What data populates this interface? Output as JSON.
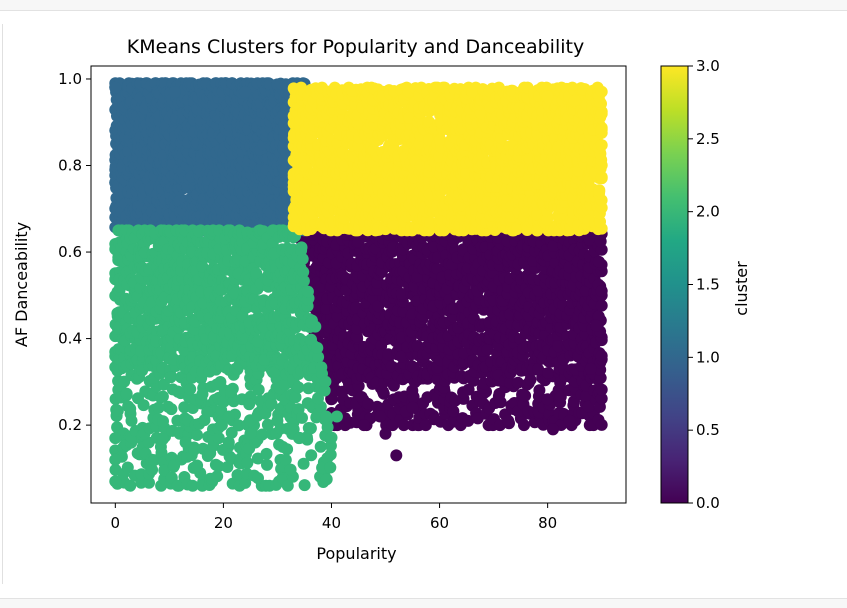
{
  "chart_data": {
    "type": "scatter",
    "title": "KMeans Clusters for Popularity and Danceability",
    "xlabel": "Popularity",
    "ylabel": "AF Danceability",
    "xlim": [
      -4.5,
      94.5
    ],
    "ylim": [
      0.02,
      1.03
    ],
    "xticks": [
      0,
      20,
      40,
      60,
      80
    ],
    "yticks": [
      0.2,
      0.4,
      0.6,
      0.8,
      1.0
    ],
    "xtick_labels": [
      "0",
      "20",
      "40",
      "60",
      "80"
    ],
    "ytick_labels": [
      "0.2",
      "0.4",
      "0.6",
      "0.8",
      "1.0"
    ],
    "grid": false,
    "colorbar": {
      "label": "cluster",
      "range": [
        0.0,
        3.0
      ],
      "ticks": [
        0.0,
        0.5,
        1.0,
        1.5,
        2.0,
        2.5,
        3.0
      ],
      "tick_labels": [
        "0.0",
        "0.5",
        "1.0",
        "1.5",
        "2.0",
        "2.5",
        "3.0"
      ],
      "colormap": "viridis",
      "colors": [
        "#440154",
        "#482475",
        "#414487",
        "#355f8d",
        "#2a788e",
        "#21918c",
        "#22a884",
        "#44bf70",
        "#7ad151",
        "#bddf26",
        "#fde725"
      ]
    },
    "clusters": [
      {
        "cluster": 0,
        "color": "#440154",
        "x_range": [
          34,
          90
        ],
        "y_range": [
          0.2,
          0.65
        ]
      },
      {
        "cluster": 1,
        "color": "#31688e",
        "x_range": [
          0,
          35
        ],
        "y_range": [
          0.65,
          0.99
        ]
      },
      {
        "cluster": 2,
        "color": "#35b779",
        "x_range": [
          0,
          40
        ],
        "y_range": [
          0.06,
          0.65
        ]
      },
      {
        "cluster": 3,
        "color": "#fde725",
        "x_range": [
          33,
          90
        ],
        "y_range": [
          0.65,
          0.98
        ]
      }
    ],
    "outlier_points": [
      {
        "x": 0,
        "y": 0.07,
        "cluster": 2
      },
      {
        "x": 0,
        "y": 0.12,
        "cluster": 2
      },
      {
        "x": 0,
        "y": 0.17,
        "cluster": 2
      },
      {
        "x": 3,
        "y": 0.21,
        "cluster": 2
      },
      {
        "x": 8,
        "y": 0.24,
        "cluster": 2
      },
      {
        "x": 13,
        "y": 0.16,
        "cluster": 2
      },
      {
        "x": 17,
        "y": 0.23,
        "cluster": 2
      },
      {
        "x": 21,
        "y": 0.22,
        "cluster": 2
      },
      {
        "x": 25,
        "y": 0.18,
        "cluster": 2
      },
      {
        "x": 30,
        "y": 0.21,
        "cluster": 2
      },
      {
        "x": 33,
        "y": 0.19,
        "cluster": 2
      },
      {
        "x": 34,
        "y": 0.17,
        "cluster": 2
      },
      {
        "x": 38,
        "y": 0.15,
        "cluster": 2
      },
      {
        "x": 39,
        "y": 0.22,
        "cluster": 2
      },
      {
        "x": 41,
        "y": 0.22,
        "cluster": 2
      },
      {
        "x": 46,
        "y": 0.2,
        "cluster": 0
      },
      {
        "x": 50,
        "y": 0.18,
        "cluster": 0
      },
      {
        "x": 52,
        "y": 0.13,
        "cluster": 0
      },
      {
        "x": 49,
        "y": 0.22,
        "cluster": 0
      },
      {
        "x": 55,
        "y": 0.24,
        "cluster": 0
      },
      {
        "x": 81,
        "y": 0.19,
        "cluster": 0
      },
      {
        "x": 84,
        "y": 0.21,
        "cluster": 0
      },
      {
        "x": 80,
        "y": 0.26,
        "cluster": 0
      },
      {
        "x": 88,
        "y": 0.33,
        "cluster": 0
      },
      {
        "x": 90,
        "y": 0.36,
        "cluster": 0
      },
      {
        "x": 89,
        "y": 0.43,
        "cluster": 0
      },
      {
        "x": 90,
        "y": 0.51,
        "cluster": 0
      },
      {
        "x": 11,
        "y": 0.97,
        "cluster": 1
      },
      {
        "x": 0,
        "y": 0.98,
        "cluster": 1
      },
      {
        "x": 24,
        "y": 0.97,
        "cluster": 1
      },
      {
        "x": 85,
        "y": 0.95,
        "cluster": 3
      },
      {
        "x": 66,
        "y": 0.97,
        "cluster": 3
      },
      {
        "x": 80,
        "y": 0.96,
        "cluster": 3
      }
    ]
  }
}
